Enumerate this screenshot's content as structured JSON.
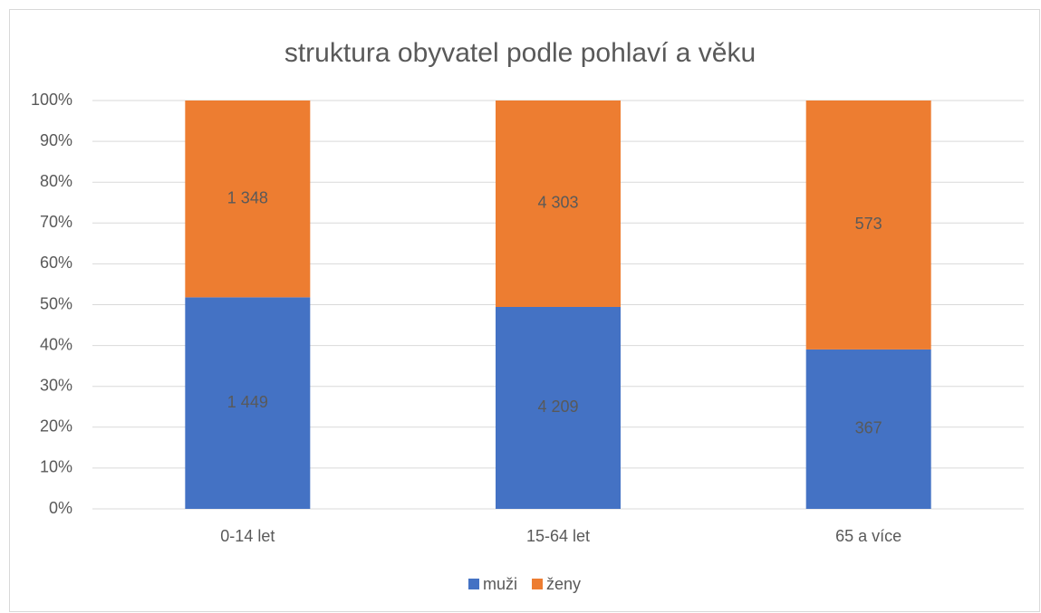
{
  "chart_data": {
    "type": "bar",
    "stacking": "percent",
    "title": "struktura obyvatel podle pohlaví a věku",
    "categories": [
      "0-14 let",
      "15-64 let",
      "65 a více"
    ],
    "series": [
      {
        "name": "muži",
        "color": "#4472c4",
        "values": [
          1449,
          4209,
          367
        ],
        "value_labels": [
          "1 449",
          "4 209",
          "367"
        ]
      },
      {
        "name": "ženy",
        "color": "#ed7d31",
        "values": [
          1348,
          4303,
          573
        ],
        "value_labels": [
          "1 348",
          "4 303",
          "573"
        ]
      }
    ],
    "ylim": [
      0,
      100
    ],
    "yticks": [
      {
        "value": 0,
        "label": "0%"
      },
      {
        "value": 10,
        "label": "10%"
      },
      {
        "value": 20,
        "label": "20%"
      },
      {
        "value": 30,
        "label": "30%"
      },
      {
        "value": 40,
        "label": "40%"
      },
      {
        "value": 50,
        "label": "50%"
      },
      {
        "value": 60,
        "label": "60%"
      },
      {
        "value": 70,
        "label": "70%"
      },
      {
        "value": 80,
        "label": "80%"
      },
      {
        "value": 90,
        "label": "90%"
      },
      {
        "value": 100,
        "label": "100%"
      }
    ],
    "grid": true,
    "legend": "bottom"
  }
}
